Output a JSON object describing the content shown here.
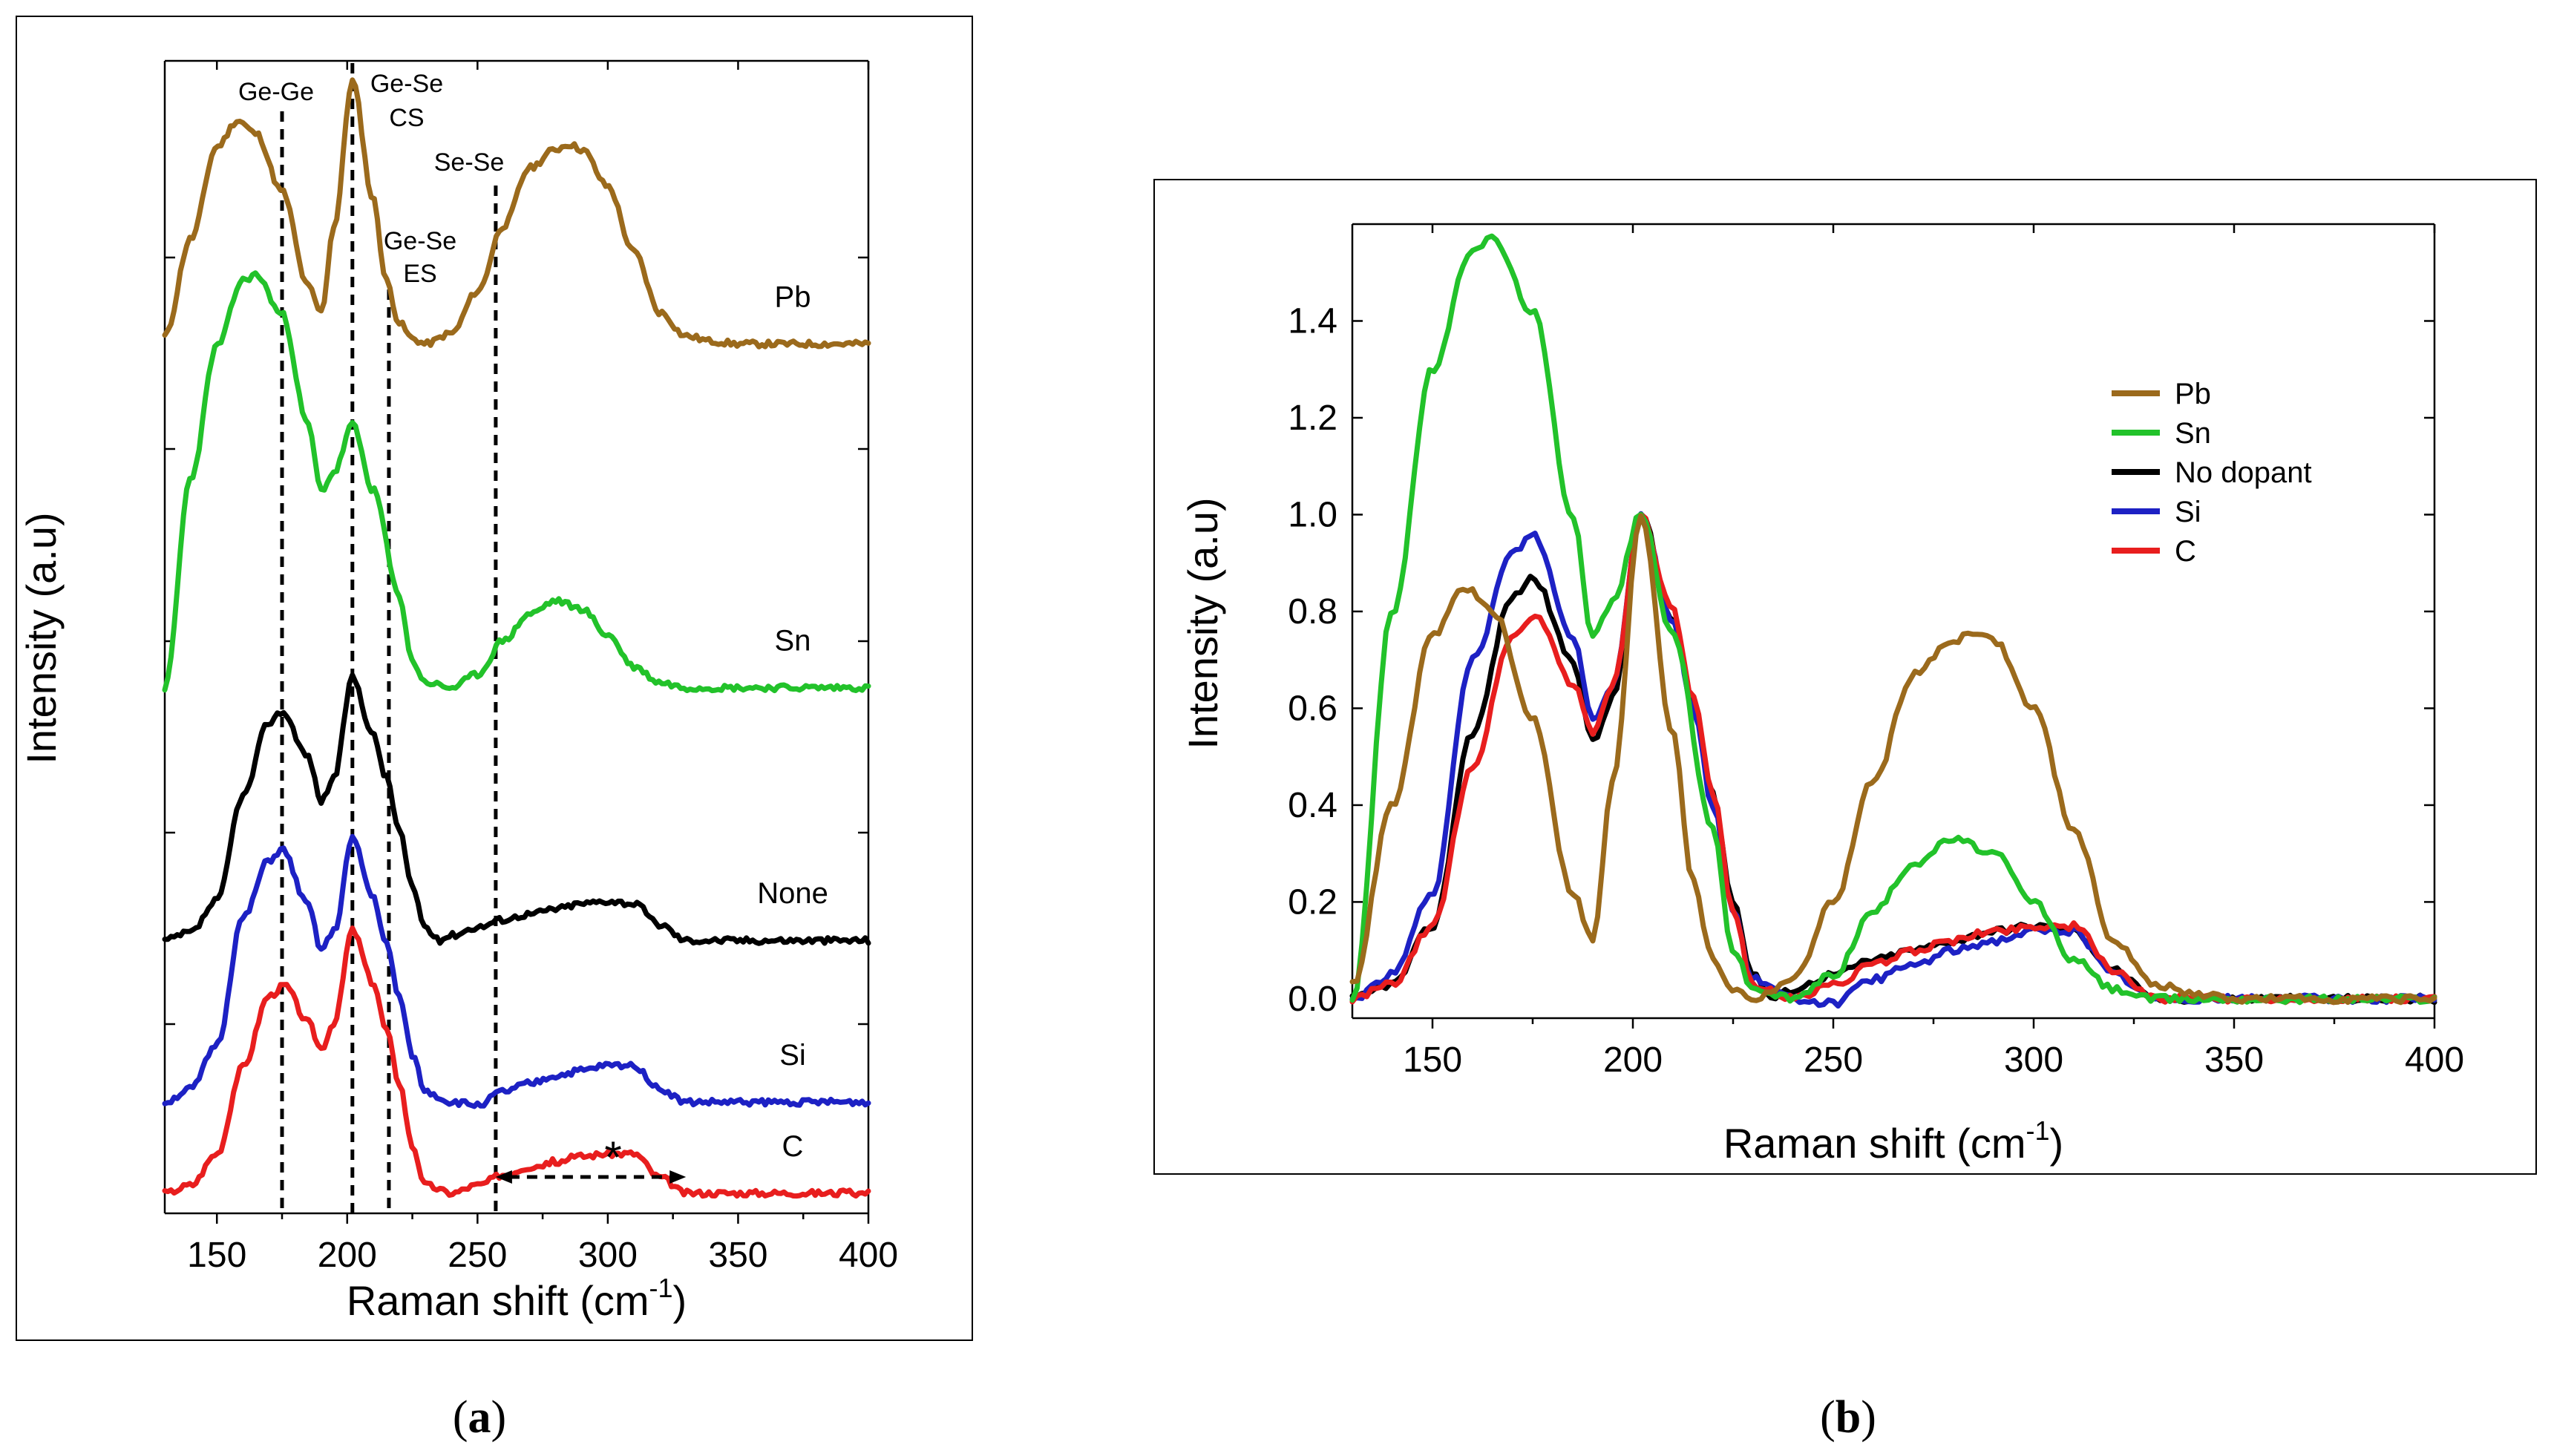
{
  "chart_data": [
    {
      "panel": "a",
      "type": "line",
      "title": "",
      "xlabel": "Raman shift (cm⁻¹)",
      "ylabel": "Intensity (a.u)",
      "xlim": [
        130,
        400
      ],
      "xticks": [
        150,
        200,
        250,
        300,
        350,
        400
      ],
      "ylim": [
        -0.1,
        5.6
      ],
      "stacked_offsets": true,
      "series": [
        {
          "name": "Pb",
          "color": "#9b6a1c",
          "offset": 4.2,
          "x": [
            130,
            140,
            150,
            158,
            165,
            175,
            185,
            190,
            195,
            202,
            210,
            215,
            220,
            225,
            230,
            240,
            250,
            260,
            270,
            280,
            285,
            290,
            300,
            310,
            320,
            330,
            340,
            350,
            400
          ],
          "y": [
            0.03,
            0.4,
            0.75,
            0.85,
            0.8,
            0.58,
            0.22,
            0.12,
            0.45,
            1.0,
            0.55,
            0.24,
            0.08,
            0.02,
            0.0,
            0.04,
            0.2,
            0.45,
            0.67,
            0.74,
            0.76,
            0.74,
            0.6,
            0.35,
            0.12,
            0.03,
            0.01,
            0.0,
            0.0
          ],
          "label": "Pb"
        },
        {
          "name": "Sn",
          "color": "#22c22a",
          "offset": 2.5,
          "x": [
            130,
            140,
            150,
            160,
            165,
            175,
            185,
            190,
            195,
            202,
            210,
            220,
            225,
            230,
            240,
            250,
            260,
            270,
            280,
            290,
            300,
            310,
            320,
            330,
            340,
            400
          ],
          "y": [
            0.0,
            0.8,
            1.3,
            1.55,
            1.57,
            1.42,
            1.0,
            0.75,
            0.82,
            1.0,
            0.75,
            0.35,
            0.1,
            0.02,
            0.0,
            0.05,
            0.18,
            0.28,
            0.33,
            0.3,
            0.2,
            0.08,
            0.02,
            0.0,
            0.0,
            0.0
          ],
          "label": "Sn"
        },
        {
          "name": "None",
          "color": "#000000",
          "offset": 1.25,
          "x": [
            130,
            140,
            150,
            160,
            170,
            175,
            185,
            190,
            195,
            202,
            210,
            215,
            220,
            225,
            230,
            235,
            240,
            250,
            260,
            270,
            280,
            290,
            300,
            310,
            320,
            330,
            400
          ],
          "y": [
            0.0,
            0.03,
            0.15,
            0.55,
            0.83,
            0.87,
            0.7,
            0.53,
            0.62,
            1.0,
            0.78,
            0.62,
            0.42,
            0.2,
            0.05,
            0.0,
            0.02,
            0.05,
            0.08,
            0.1,
            0.12,
            0.14,
            0.15,
            0.14,
            0.06,
            0.0,
            0.0
          ],
          "label": "None"
        },
        {
          "name": "Si",
          "color": "#1d21c4",
          "offset": 0.45,
          "x": [
            130,
            140,
            150,
            160,
            170,
            175,
            185,
            190,
            195,
            202,
            210,
            215,
            220,
            225,
            230,
            240,
            250,
            260,
            270,
            280,
            290,
            300,
            310,
            320,
            330,
            400
          ],
          "y": [
            0.0,
            0.05,
            0.22,
            0.7,
            0.92,
            0.96,
            0.75,
            0.58,
            0.65,
            1.0,
            0.78,
            0.6,
            0.4,
            0.18,
            0.04,
            0.0,
            -0.01,
            0.04,
            0.07,
            0.1,
            0.12,
            0.14,
            0.14,
            0.05,
            0.0,
            0.0
          ],
          "label": "Si"
        },
        {
          "name": "C",
          "color": "#e81e1e",
          "offset": 0.0,
          "x": [
            130,
            140,
            150,
            160,
            170,
            176,
            185,
            190,
            195,
            202,
            210,
            215,
            220,
            225,
            230,
            240,
            250,
            260,
            270,
            280,
            290,
            300,
            310,
            320,
            330,
            400
          ],
          "y": [
            0.0,
            0.03,
            0.15,
            0.48,
            0.75,
            0.79,
            0.65,
            0.55,
            0.65,
            1.0,
            0.8,
            0.62,
            0.42,
            0.18,
            0.03,
            0.0,
            0.03,
            0.07,
            0.1,
            0.12,
            0.14,
            0.15,
            0.15,
            0.06,
            0.0,
            0.0
          ],
          "label": "C"
        }
      ],
      "vlines": [
        {
          "x": 175,
          "label": "Ge-Ge"
        },
        {
          "x": 202,
          "label": "Ge-Se CS"
        },
        {
          "x": 216,
          "label": "Ge-Se ES"
        },
        {
          "x": 257,
          "label": "Se-Se"
        }
      ],
      "annotations": [
        {
          "text": "Ge-Ge"
        },
        {
          "text": "Ge-Se"
        },
        {
          "text": "CS"
        },
        {
          "text": "Ge-Se"
        },
        {
          "text": "ES"
        },
        {
          "text": "Se-Se"
        },
        {
          "text": "*",
          "range": [
            257,
            330
          ]
        }
      ]
    },
    {
      "panel": "b",
      "type": "line",
      "title": "",
      "xlabel": "Raman shift (cm⁻¹)",
      "ylabel": "Intensity (a.u)",
      "xlim": [
        130,
        400
      ],
      "xticks": [
        150,
        200,
        250,
        300,
        350,
        400
      ],
      "ylim": [
        -0.04,
        1.6
      ],
      "yticks": [
        "0.0",
        "0.2",
        "0.4",
        "0.6",
        "0.8",
        "1.0",
        "1.2",
        "1.4"
      ],
      "legend_position": "top-right",
      "series_ref": [
        "Pb",
        "Sn",
        "No dopant",
        "Si",
        "C"
      ]
    }
  ],
  "legend_b": [
    "Pb",
    "Sn",
    "No dopant",
    "Si",
    "C"
  ],
  "captions": {
    "a": "a",
    "b": "b"
  },
  "texts": {
    "xlabel_base": "Raman shift (cm",
    "xlabel_sup": "-1",
    "xlabel_end": ")",
    "ylabel": "Intensity (a.u)",
    "open_paren": "(",
    "close_paren": ")"
  }
}
